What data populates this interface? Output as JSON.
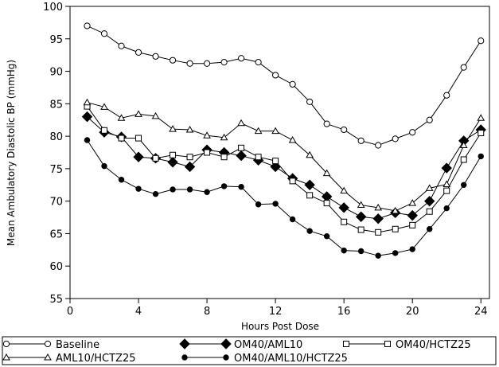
{
  "chart_data": {
    "type": "line",
    "title": "",
    "xlabel": "Hours Post Dose",
    "ylabel": "Mean Ambulatory Diastolic BP (mmHg)",
    "xlim": [
      0,
      24.5
    ],
    "ylim": [
      55,
      100
    ],
    "xticks": [
      0,
      4,
      8,
      12,
      16,
      20,
      24
    ],
    "yticks": [
      55,
      60,
      65,
      70,
      75,
      80,
      85,
      90,
      95,
      100
    ],
    "grid": false,
    "legend_position": "bottom",
    "x": [
      1,
      2,
      3,
      4,
      5,
      6,
      7,
      8,
      9,
      10,
      11,
      12,
      13,
      14,
      15,
      16,
      17,
      18,
      19,
      20,
      21,
      22,
      23,
      24
    ],
    "series": [
      {
        "name": "Baseline",
        "marker": "circle-open",
        "values": [
          97.0,
          95.8,
          93.9,
          92.9,
          92.3,
          91.7,
          91.2,
          91.2,
          91.4,
          92.0,
          91.4,
          89.4,
          88.0,
          85.3,
          81.9,
          81.0,
          79.3,
          78.6,
          79.6,
          80.6,
          82.5,
          86.3,
          90.6,
          94.7
        ]
      },
      {
        "name": "OM40/AML10",
        "marker": "diamond-filled",
        "values": [
          83.0,
          80.6,
          79.9,
          76.8,
          76.6,
          76.0,
          75.3,
          77.9,
          77.5,
          77.0,
          76.3,
          75.3,
          73.5,
          72.5,
          70.7,
          69.0,
          67.6,
          67.3,
          68.2,
          67.8,
          70.0,
          75.1,
          79.3,
          81.0
        ]
      },
      {
        "name": "OM40/HCTZ25",
        "marker": "square-open",
        "values": [
          84.6,
          80.9,
          79.7,
          79.7,
          76.6,
          77.1,
          76.8,
          77.5,
          76.8,
          78.2,
          76.8,
          76.2,
          73.1,
          70.9,
          69.7,
          66.8,
          65.6,
          65.2,
          65.7,
          66.3,
          68.4,
          71.6,
          76.4,
          80.5
        ]
      },
      {
        "name": "AML10/HCTZ25",
        "marker": "triangle-open",
        "values": [
          85.2,
          84.5,
          82.8,
          83.4,
          83.1,
          81.1,
          81.0,
          80.1,
          79.8,
          82.0,
          80.8,
          80.8,
          79.4,
          77.1,
          74.3,
          71.6,
          69.4,
          69.0,
          68.5,
          69.7,
          72.0,
          72.6,
          78.6,
          82.8
        ]
      },
      {
        "name": "OM40/AML10/HCTZ25",
        "marker": "circle-filled",
        "values": [
          79.4,
          75.4,
          73.3,
          71.9,
          71.1,
          71.8,
          71.8,
          71.4,
          72.3,
          72.2,
          69.5,
          69.6,
          67.2,
          65.4,
          64.6,
          62.4,
          62.3,
          61.6,
          62.0,
          62.6,
          65.7,
          68.9,
          72.5,
          76.9
        ]
      }
    ]
  }
}
